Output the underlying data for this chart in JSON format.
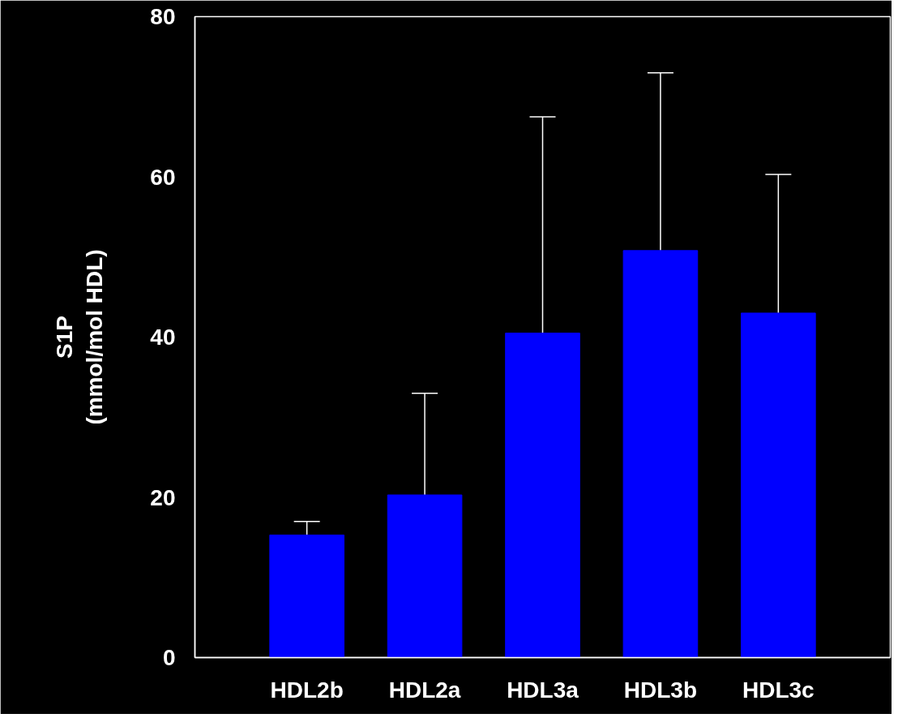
{
  "chart_data": {
    "type": "bar",
    "ylabel": "S1P\n(mmol/mol HDL)",
    "categories": [
      "HDL2b",
      "HDL2a",
      "HDL3a",
      "HDL3b",
      "HDL3c"
    ],
    "values": [
      15.3,
      20.3,
      40.5,
      50.8,
      43.0
    ],
    "errors": [
      [
        15.3,
        17.0
      ],
      [
        20.3,
        33.0
      ],
      [
        40.5,
        67.5
      ],
      [
        50.8,
        73.0
      ],
      [
        43.0,
        60.3
      ]
    ],
    "color": "#0000ff",
    "ylim": [
      0,
      80
    ],
    "yticks": [
      0,
      20,
      40,
      60,
      80
    ],
    "grid": false
  }
}
